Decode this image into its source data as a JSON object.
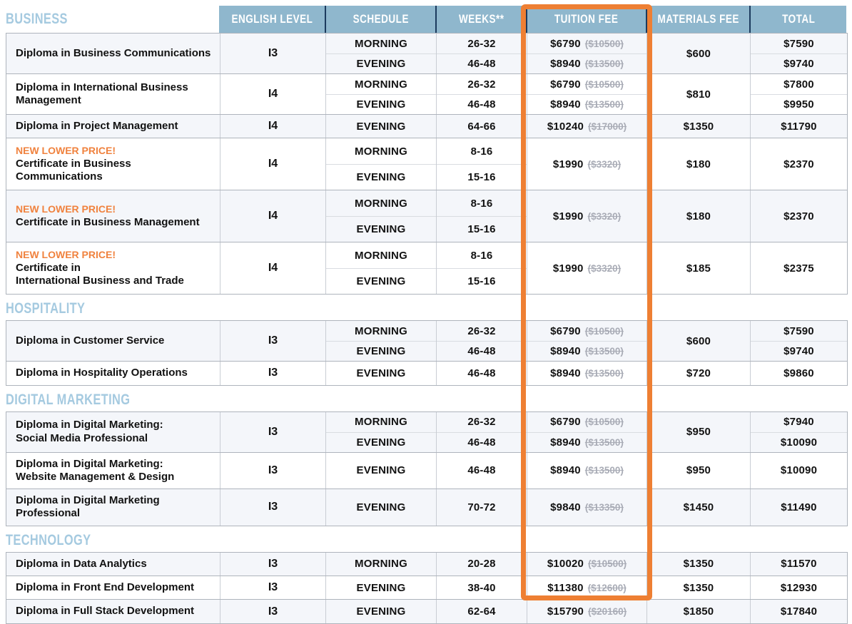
{
  "colors": {
    "header_bg": "#8FB7CD",
    "header_separator": "#1C3B5E",
    "header_text": "#FFFFFF",
    "section_title": "#A5CAE0",
    "accent_orange": "#EE7F33",
    "badge_orange": "#F0823E",
    "old_price_gray": "#A9ACB6",
    "row_tint": "#F4F6FA"
  },
  "table": {
    "columns": [
      "ENGLISH LEVEL",
      "SCHEDULE",
      "WEEKS**",
      "TUITION FEE",
      "MATERIALS FEE",
      "TOTAL"
    ],
    "highlighted_column": "TUITION FEE",
    "sections": [
      {
        "title": "BUSINESS",
        "courses": [
          {
            "name_lines": [
              "Diploma in Business Communications"
            ],
            "level": "I3",
            "schedules": [
              {
                "schedule": "MORNING",
                "weeks": "26-32"
              },
              {
                "schedule": "EVENING",
                "weeks": "46-48"
              }
            ],
            "tuition": [
              {
                "price": "$6790",
                "old": "($10500)"
              },
              {
                "price": "$8940",
                "old": "($13500)"
              }
            ],
            "materials": "$600",
            "totals": [
              "$7590",
              "$9740"
            ],
            "tinted": true
          },
          {
            "name_lines": [
              "Diploma in International Business",
              "Management"
            ],
            "level": "I4",
            "schedules": [
              {
                "schedule": "MORNING",
                "weeks": "26-32"
              },
              {
                "schedule": "EVENING",
                "weeks": "46-48"
              }
            ],
            "tuition": [
              {
                "price": "$6790",
                "old": "($10500)"
              },
              {
                "price": "$8940",
                "old": "($13500)"
              }
            ],
            "materials": "$810",
            "totals": [
              "$7800",
              "$9950"
            ],
            "tinted": false
          },
          {
            "name_lines": [
              "Diploma in Project Management"
            ],
            "level": "I4",
            "schedules": [
              {
                "schedule": "EVENING",
                "weeks": "64-66"
              }
            ],
            "tuition": [
              {
                "price": "$10240",
                "old": "($17000)"
              }
            ],
            "materials": "$1350",
            "totals": [
              "$11790"
            ],
            "tinted": true
          },
          {
            "badge": "NEW LOWER PRICE!",
            "name_lines": [
              "Certificate in Business Communications"
            ],
            "level": "I4",
            "schedules": [
              {
                "schedule": "MORNING",
                "weeks": "8-16"
              },
              {
                "schedule": "EVENING",
                "weeks": "15-16"
              }
            ],
            "tuition": [
              {
                "price": "$1990",
                "old": "($3320)"
              }
            ],
            "materials": "$180",
            "totals": [
              "$2370"
            ],
            "tinted": false
          },
          {
            "badge": "NEW LOWER PRICE!",
            "name_lines": [
              "Certificate in Business Management"
            ],
            "level": "I4",
            "schedules": [
              {
                "schedule": "MORNING",
                "weeks": "8-16"
              },
              {
                "schedule": "EVENING",
                "weeks": "15-16"
              }
            ],
            "tuition": [
              {
                "price": "$1990",
                "old": "($3320)"
              }
            ],
            "materials": "$180",
            "totals": [
              "$2370"
            ],
            "tinted": true
          },
          {
            "badge": "NEW LOWER PRICE!",
            "name_lines": [
              "Certificate in",
              "International Business and Trade"
            ],
            "level": "I4",
            "schedules": [
              {
                "schedule": "MORNING",
                "weeks": "8-16"
              },
              {
                "schedule": "EVENING",
                "weeks": "15-16"
              }
            ],
            "tuition": [
              {
                "price": "$1990",
                "old": "($3320)"
              }
            ],
            "materials": "$185",
            "totals": [
              "$2375"
            ],
            "tinted": false
          }
        ]
      },
      {
        "title": "HOSPITALITY",
        "courses": [
          {
            "name_lines": [
              "Diploma in Customer Service"
            ],
            "level": "I3",
            "schedules": [
              {
                "schedule": "MORNING",
                "weeks": "26-32"
              },
              {
                "schedule": "EVENING",
                "weeks": "46-48"
              }
            ],
            "tuition": [
              {
                "price": "$6790",
                "old": "($10500)"
              },
              {
                "price": "$8940",
                "old": "($13500)"
              }
            ],
            "materials": "$600",
            "totals": [
              "$7590",
              "$9740"
            ],
            "tinted": true
          },
          {
            "name_lines": [
              "Diploma in Hospitality Operations"
            ],
            "level": "I3",
            "schedules": [
              {
                "schedule": "EVENING",
                "weeks": "46-48"
              }
            ],
            "tuition": [
              {
                "price": "$8940",
                "old": "($13500)"
              }
            ],
            "materials": "$720",
            "totals": [
              "$9860"
            ],
            "tinted": false
          }
        ]
      },
      {
        "title": "DIGITAL MARKETING",
        "courses": [
          {
            "name_lines": [
              "Diploma in Digital Marketing:",
              "Social Media Professional"
            ],
            "level": "I3",
            "schedules": [
              {
                "schedule": "MORNING",
                "weeks": "26-32"
              },
              {
                "schedule": "EVENING",
                "weeks": "46-48"
              }
            ],
            "tuition": [
              {
                "price": "$6790",
                "old": "($10500)"
              },
              {
                "price": "$8940",
                "old": "($13500)"
              }
            ],
            "materials": "$950",
            "totals": [
              "$7940",
              "$10090"
            ],
            "tinted": true
          },
          {
            "name_lines": [
              "Diploma in Digital Marketing:",
              "Website Management & Design"
            ],
            "level": "I3",
            "schedules": [
              {
                "schedule": "EVENING",
                "weeks": "46-48"
              }
            ],
            "tuition": [
              {
                "price": "$8940",
                "old": "($13500)"
              }
            ],
            "materials": "$950",
            "totals": [
              "$10090"
            ],
            "tinted": false
          },
          {
            "name_lines": [
              "Diploma in Digital Marketing",
              "Professional"
            ],
            "level": "I3",
            "schedules": [
              {
                "schedule": "EVENING",
                "weeks": "70-72"
              }
            ],
            "tuition": [
              {
                "price": "$9840",
                "old": "($13350)"
              }
            ],
            "materials": "$1450",
            "totals": [
              "$11490"
            ],
            "tinted": true
          }
        ]
      },
      {
        "title": "TECHNOLOGY",
        "courses": [
          {
            "name_lines": [
              "Diploma in Data Analytics"
            ],
            "level": "I3",
            "schedules": [
              {
                "schedule": "MORNING",
                "weeks": "20-28"
              }
            ],
            "tuition": [
              {
                "price": "$10020",
                "old": "($10500)"
              }
            ],
            "materials": "$1350",
            "totals": [
              "$11570"
            ],
            "tinted": true
          },
          {
            "name_lines": [
              "Diploma in Front End Development"
            ],
            "level": "I3",
            "schedules": [
              {
                "schedule": "EVENING",
                "weeks": "38-40"
              }
            ],
            "tuition": [
              {
                "price": "$11380",
                "old": "($12600)"
              }
            ],
            "materials": "$1350",
            "totals": [
              "$12930"
            ],
            "tinted": false
          },
          {
            "name_lines": [
              "Diploma in Full Stack Development"
            ],
            "level": "I3",
            "schedules": [
              {
                "schedule": "EVENING",
                "weeks": "62-64"
              }
            ],
            "tuition": [
              {
                "price": "$15790",
                "old": "($20160)"
              }
            ],
            "materials": "$1850",
            "totals": [
              "$17840"
            ],
            "tinted": true
          }
        ]
      }
    ]
  }
}
